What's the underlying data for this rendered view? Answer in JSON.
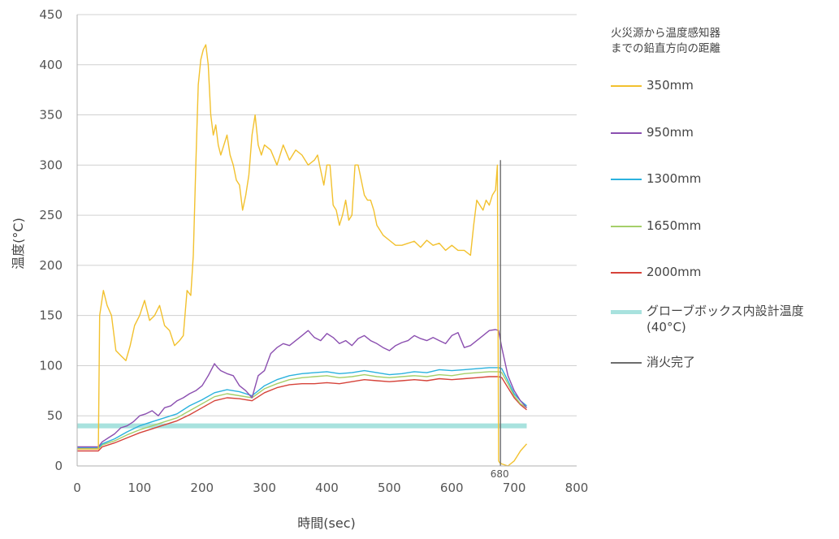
{
  "chart_data": {
    "type": "line",
    "xlabel": "時間(sec)",
    "ylabel": "温度(°C)",
    "xlim": [
      0,
      800
    ],
    "ylim": [
      0,
      450
    ],
    "xticks": [
      "0",
      "100",
      "200",
      "300",
      "400",
      "500",
      "600",
      "700",
      "800"
    ],
    "yticks": [
      "0",
      "50",
      "100",
      "150",
      "200",
      "250",
      "300",
      "350",
      "400",
      "450"
    ],
    "grid": "horizontal",
    "legend_title": "火災源から温度感知器\nまでの鉛直方向の距離",
    "legend_position": "right",
    "annotations": [
      {
        "text": "680",
        "x": 680,
        "y": 0
      }
    ],
    "series": [
      {
        "name": "350mm",
        "color": "#f2c12e",
        "x": [
          0,
          34,
          36,
          42,
          48,
          55,
          62,
          70,
          78,
          85,
          92,
          100,
          108,
          116,
          124,
          132,
          140,
          148,
          156,
          164,
          170,
          176,
          182,
          186,
          190,
          194,
          198,
          202,
          206,
          210,
          214,
          218,
          222,
          226,
          230,
          235,
          240,
          245,
          250,
          255,
          260,
          265,
          270,
          275,
          280,
          285,
          290,
          295,
          300,
          310,
          320,
          330,
          340,
          350,
          360,
          370,
          380,
          385,
          390,
          395,
          400,
          405,
          410,
          415,
          420,
          425,
          430,
          435,
          440,
          445,
          450,
          455,
          460,
          465,
          470,
          475,
          480,
          490,
          500,
          510,
          520,
          530,
          540,
          550,
          560,
          570,
          580,
          590,
          600,
          610,
          620,
          630,
          635,
          640,
          645,
          650,
          655,
          660,
          665,
          670,
          673,
          675,
          677,
          680,
          690,
          700,
          710,
          720
        ],
        "y": [
          17,
          17,
          150,
          175,
          160,
          150,
          115,
          110,
          105,
          120,
          140,
          150,
          165,
          145,
          150,
          160,
          140,
          135,
          120,
          125,
          130,
          175,
          170,
          210,
          300,
          380,
          405,
          415,
          420,
          400,
          350,
          330,
          340,
          320,
          310,
          320,
          330,
          310,
          300,
          285,
          280,
          255,
          270,
          290,
          330,
          350,
          320,
          310,
          320,
          315,
          300,
          320,
          305,
          315,
          310,
          300,
          305,
          310,
          295,
          280,
          300,
          300,
          260,
          255,
          240,
          250,
          265,
          245,
          250,
          300,
          300,
          285,
          270,
          265,
          265,
          255,
          240,
          230,
          225,
          220,
          220,
          222,
          224,
          218,
          225,
          220,
          222,
          215,
          220,
          215,
          215,
          210,
          240,
          265,
          260,
          255,
          265,
          260,
          270,
          275,
          300,
          5,
          3,
          2,
          0,
          5,
          15,
          22
        ]
      },
      {
        "name": "950mm",
        "color": "#8b4fb0",
        "x": [
          0,
          34,
          40,
          50,
          60,
          70,
          80,
          90,
          100,
          110,
          120,
          130,
          140,
          150,
          160,
          170,
          180,
          190,
          200,
          210,
          220,
          225,
          230,
          240,
          250,
          260,
          270,
          280,
          290,
          300,
          310,
          320,
          330,
          340,
          350,
          360,
          370,
          380,
          390,
          400,
          410,
          420,
          430,
          440,
          450,
          460,
          470,
          480,
          490,
          500,
          510,
          520,
          530,
          540,
          550,
          560,
          570,
          580,
          590,
          600,
          610,
          620,
          630,
          640,
          650,
          660,
          670,
          675,
          680,
          690,
          700,
          710,
          720
        ],
        "y": [
          19,
          19,
          24,
          28,
          32,
          38,
          40,
          44,
          50,
          52,
          55,
          50,
          58,
          60,
          65,
          68,
          72,
          75,
          80,
          90,
          102,
          98,
          95,
          92,
          90,
          80,
          75,
          68,
          90,
          95,
          112,
          118,
          122,
          120,
          125,
          130,
          135,
          128,
          125,
          132,
          128,
          122,
          125,
          120,
          127,
          130,
          125,
          122,
          118,
          115,
          120,
          123,
          125,
          130,
          127,
          125,
          128,
          125,
          122,
          130,
          133,
          118,
          120,
          125,
          130,
          135,
          136,
          135,
          118,
          90,
          75,
          65,
          58
        ]
      },
      {
        "name": "1300mm",
        "color": "#2bb2de",
        "x": [
          0,
          34,
          40,
          60,
          80,
          100,
          120,
          140,
          160,
          180,
          200,
          220,
          240,
          260,
          280,
          300,
          320,
          340,
          360,
          380,
          400,
          420,
          440,
          460,
          480,
          500,
          520,
          540,
          560,
          580,
          600,
          620,
          640,
          660,
          675,
          680,
          690,
          700,
          710,
          720
        ],
        "y": [
          18,
          18,
          22,
          27,
          34,
          40,
          44,
          48,
          52,
          60,
          66,
          73,
          76,
          74,
          70,
          80,
          86,
          90,
          92,
          93,
          94,
          92,
          93,
          95,
          93,
          91,
          92,
          94,
          93,
          96,
          95,
          96,
          97,
          98,
          98,
          97,
          85,
          72,
          65,
          60
        ]
      },
      {
        "name": "1650mm",
        "color": "#a5cf6a",
        "x": [
          0,
          34,
          40,
          60,
          80,
          100,
          120,
          140,
          160,
          180,
          200,
          220,
          240,
          260,
          280,
          300,
          320,
          340,
          360,
          380,
          400,
          420,
          440,
          460,
          480,
          500,
          520,
          540,
          560,
          580,
          600,
          620,
          640,
          660,
          675,
          680,
          690,
          700,
          710,
          720
        ],
        "y": [
          17,
          17,
          21,
          25,
          31,
          36,
          40,
          44,
          48,
          55,
          62,
          69,
          72,
          70,
          68,
          77,
          82,
          86,
          88,
          89,
          90,
          88,
          89,
          91,
          89,
          88,
          89,
          90,
          89,
          91,
          90,
          92,
          93,
          94,
          94,
          93,
          82,
          70,
          62,
          58
        ]
      },
      {
        "name": "2000mm",
        "color": "#d6433a",
        "x": [
          0,
          34,
          40,
          60,
          80,
          100,
          120,
          140,
          160,
          180,
          200,
          220,
          240,
          260,
          280,
          300,
          320,
          340,
          360,
          380,
          400,
          420,
          440,
          460,
          480,
          500,
          520,
          540,
          560,
          580,
          600,
          620,
          640,
          660,
          675,
          680,
          690,
          700,
          710,
          720
        ],
        "y": [
          15,
          15,
          19,
          23,
          28,
          33,
          37,
          41,
          45,
          51,
          58,
          65,
          68,
          67,
          65,
          73,
          78,
          81,
          82,
          82,
          83,
          82,
          84,
          86,
          85,
          84,
          85,
          86,
          85,
          87,
          86,
          87,
          88,
          89,
          89,
          88,
          78,
          68,
          61,
          56
        ]
      },
      {
        "name": "グローブボックス内設計温度\n(40°C)",
        "color": "#a8e2de",
        "x": [
          0,
          720
        ],
        "y": [
          40,
          40
        ]
      },
      {
        "name": "消火完了",
        "color": "#6d6d6d",
        "x": [
          678,
          678
        ],
        "y": [
          0,
          305
        ]
      }
    ]
  }
}
